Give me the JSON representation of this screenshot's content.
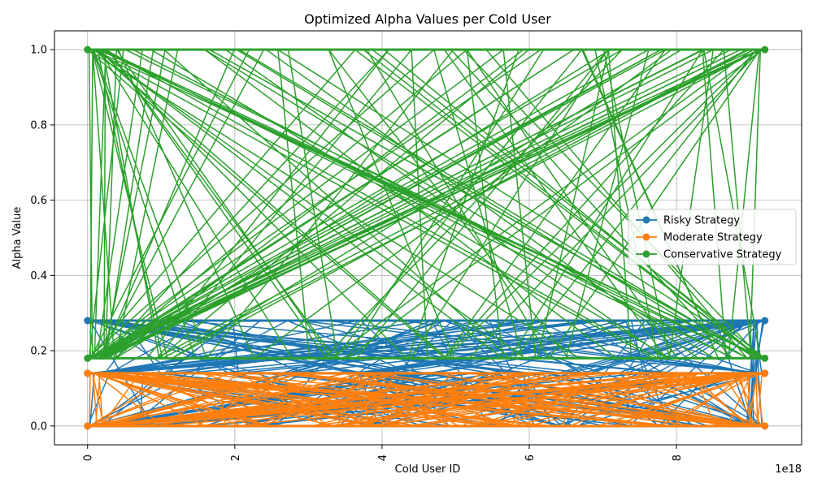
{
  "chart_data": {
    "type": "line",
    "title": "Optimized Alpha Values per Cold User",
    "xlabel": "Cold User ID",
    "ylabel": "Alpha Value",
    "x_offset_label": "1e18",
    "xlim": [
      -0.45,
      9.7
    ],
    "ylim": [
      -0.05,
      1.05
    ],
    "x_ticks": [
      0,
      2,
      4,
      6,
      8
    ],
    "x_tick_labels": [
      "0",
      "2",
      "4",
      "6",
      "8"
    ],
    "y_ticks": [
      0.0,
      0.2,
      0.4,
      0.6,
      0.8,
      1.0
    ],
    "y_tick_labels": [
      "0.0",
      "0.2",
      "0.4",
      "0.6",
      "0.8",
      "1.0"
    ],
    "x_tick_rotation": "vertical",
    "grid": true,
    "legend_position": "center-right",
    "marker": "circle",
    "x_range_users": [
      0.0,
      9.2
    ],
    "series": [
      {
        "name": "Risky Strategy",
        "color": "#1f77b4",
        "levels": [
          0.0,
          0.14,
          0.28
        ]
      },
      {
        "name": "Moderate Strategy",
        "color": "#ff7f0e",
        "levels": [
          0.0,
          0.14
        ]
      },
      {
        "name": "Conservative Strategy",
        "color": "#2ca02c",
        "levels": [
          0.18,
          1.0
        ]
      }
    ]
  }
}
